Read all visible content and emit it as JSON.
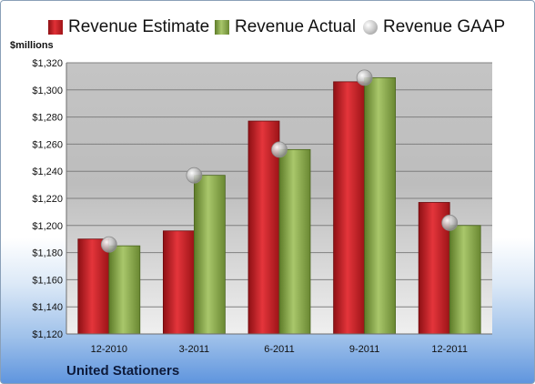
{
  "chart_data": {
    "type": "bar",
    "categories": [
      "12-2010",
      "3-2011",
      "6-2011",
      "9-2011",
      "12-2011"
    ],
    "series": [
      {
        "name": "Revenue Estimate",
        "kind": "bar",
        "color": "#cc1a1f",
        "values": [
          1190,
          1196,
          1277,
          1306,
          1217
        ]
      },
      {
        "name": "Revenue Actual",
        "kind": "bar",
        "color": "#8fae4e",
        "values": [
          1185,
          1237,
          1256,
          1309,
          1200
        ]
      },
      {
        "name": "Revenue GAAP",
        "kind": "marker",
        "color": "#c8c8c8",
        "values": [
          1186,
          1237,
          1256,
          1309,
          1202
        ]
      }
    ],
    "ylabel": "$millions",
    "ylim": [
      1120,
      1320
    ],
    "yticks": [
      1120,
      1140,
      1160,
      1180,
      1200,
      1220,
      1240,
      1260,
      1280,
      1300,
      1320
    ],
    "ytick_labels": [
      "$1,120",
      "$1,140",
      "$1,160",
      "$1,180",
      "$1,200",
      "$1,220",
      "$1,240",
      "$1,260",
      "$1,280",
      "$1,300",
      "$1,320"
    ],
    "grid": true,
    "legend_position": "top"
  },
  "company_name": "United Stationers"
}
